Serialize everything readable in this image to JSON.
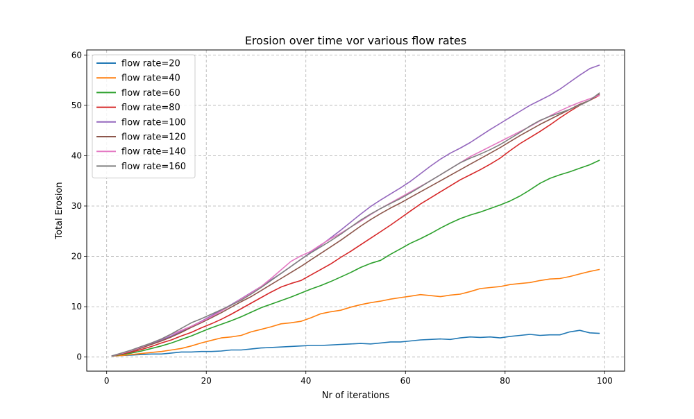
{
  "chart_data": {
    "type": "line",
    "title": "Erosion over time vor various flow rates",
    "xlabel": "Nr of iterations",
    "ylabel": "Total Erosion",
    "xlim": [
      -4,
      104
    ],
    "ylim": [
      -2.8,
      61
    ],
    "xticks": [
      0,
      20,
      40,
      60,
      80,
      100
    ],
    "yticks": [
      0,
      10,
      20,
      30,
      40,
      50,
      60
    ],
    "grid": true,
    "legend_position": "top-left",
    "x_range": [
      1,
      99
    ],
    "x_step": 2,
    "series": [
      {
        "name": "flow rate=20",
        "color": "#1f77b4",
        "values": [
          0.2,
          0.3,
          0.4,
          0.5,
          0.6,
          0.6,
          0.8,
          1.0,
          1.0,
          1.1,
          1.1,
          1.2,
          1.4,
          1.4,
          1.6,
          1.8,
          1.9,
          2.0,
          2.1,
          2.2,
          2.3,
          2.3,
          2.4,
          2.5,
          2.6,
          2.7,
          2.6,
          2.8,
          3.0,
          3.0,
          3.2,
          3.4,
          3.5,
          3.6,
          3.5,
          3.8,
          4.0,
          3.9,
          4.0,
          3.8,
          4.1,
          4.3,
          4.5,
          4.3,
          4.4,
          4.4,
          5.0,
          5.3,
          4.8,
          4.7
        ]
      },
      {
        "name": "flow rate=40",
        "color": "#ff7f0e",
        "values": [
          0.2,
          0.3,
          0.5,
          0.7,
          0.9,
          1.1,
          1.4,
          1.7,
          2.2,
          2.8,
          3.3,
          3.8,
          4.0,
          4.3,
          5.0,
          5.5,
          6.0,
          6.6,
          6.8,
          7.1,
          7.8,
          8.6,
          9.0,
          9.3,
          9.9,
          10.4,
          10.8,
          11.1,
          11.5,
          11.8,
          12.1,
          12.4,
          12.2,
          12.0,
          12.3,
          12.5,
          13.0,
          13.6,
          13.8,
          14.0,
          14.4,
          14.6,
          14.8,
          15.2,
          15.5,
          15.6,
          16.0,
          16.5,
          17.0,
          17.4
        ]
      },
      {
        "name": "flow rate=60",
        "color": "#2ca02c",
        "values": [
          0.2,
          0.5,
          0.8,
          1.2,
          1.7,
          2.2,
          2.8,
          3.5,
          4.2,
          5.0,
          5.8,
          6.5,
          7.2,
          8.0,
          8.9,
          9.8,
          10.5,
          11.2,
          11.9,
          12.7,
          13.5,
          14.2,
          15.0,
          15.9,
          16.8,
          17.8,
          18.6,
          19.2,
          20.4,
          21.5,
          22.6,
          23.5,
          24.5,
          25.6,
          26.6,
          27.5,
          28.2,
          28.8,
          29.5,
          30.2,
          31.0,
          32.0,
          33.2,
          34.5,
          35.5,
          36.2,
          36.8,
          37.5,
          38.2,
          39.1
        ]
      },
      {
        "name": "flow rate=80",
        "color": "#d62728",
        "values": [
          0.2,
          0.6,
          1.0,
          1.5,
          2.1,
          2.8,
          3.4,
          4.2,
          4.9,
          5.8,
          6.6,
          7.5,
          8.5,
          9.6,
          10.7,
          11.8,
          12.9,
          13.9,
          14.6,
          15.2,
          16.3,
          17.4,
          18.5,
          19.8,
          21.0,
          22.3,
          23.6,
          24.9,
          26.2,
          27.6,
          29.0,
          30.4,
          31.6,
          32.8,
          34.0,
          35.2,
          36.2,
          37.2,
          38.3,
          39.5,
          41.0,
          42.4,
          43.6,
          44.8,
          46.1,
          47.5,
          48.8,
          50.0,
          51.0,
          52.0
        ]
      },
      {
        "name": "flow rate=100",
        "color": "#9467bd",
        "values": [
          0.2,
          0.7,
          1.2,
          1.9,
          2.6,
          3.4,
          4.2,
          5.1,
          6.1,
          7.1,
          8.2,
          9.3,
          10.4,
          11.6,
          12.8,
          14.0,
          15.3,
          16.6,
          18.0,
          19.4,
          20.8,
          22.2,
          23.7,
          25.2,
          26.8,
          28.4,
          29.9,
          31.2,
          32.4,
          33.6,
          34.9,
          36.4,
          37.9,
          39.3,
          40.5,
          41.5,
          42.6,
          43.9,
          45.2,
          46.4,
          47.6,
          48.8,
          50.0,
          51.0,
          52.0,
          53.2,
          54.6,
          56.0,
          57.3,
          58.0
        ]
      },
      {
        "name": "flow rate=120",
        "color": "#8c564b",
        "values": [
          0.2,
          0.7,
          1.2,
          1.8,
          2.5,
          3.2,
          4.0,
          4.9,
          5.9,
          6.8,
          7.8,
          8.8,
          9.9,
          11.0,
          12.0,
          13.2,
          14.4,
          15.6,
          16.8,
          18.0,
          19.3,
          20.6,
          21.9,
          23.2,
          24.6,
          26.0,
          27.3,
          28.5,
          29.6,
          30.6,
          31.7,
          32.8,
          33.9,
          35.0,
          36.1,
          37.2,
          38.3,
          39.4,
          40.5,
          41.6,
          42.8,
          44.0,
          45.1,
          46.2,
          47.2,
          48.2,
          49.2,
          50.2,
          51.0,
          52.2
        ]
      },
      {
        "name": "flow rate=140",
        "color": "#e377c2",
        "values": [
          0.2,
          0.7,
          1.3,
          2.0,
          2.8,
          3.6,
          4.5,
          5.3,
          6.1,
          7.0,
          8.0,
          9.1,
          10.3,
          11.5,
          12.7,
          14.0,
          15.6,
          17.3,
          19.0,
          20.1,
          21.0,
          22.3,
          23.5,
          24.6,
          25.8,
          27.0,
          28.3,
          29.5,
          30.6,
          31.7,
          32.8,
          33.9,
          35.0,
          36.2,
          37.4,
          38.6,
          39.8,
          40.8,
          41.8,
          42.8,
          43.8,
          44.8,
          45.8,
          46.9,
          47.9,
          48.9,
          49.8,
          50.6,
          51.3,
          52.0
        ]
      },
      {
        "name": "flow rate=160",
        "color": "#7f7f7f",
        "values": [
          0.2,
          0.8,
          1.4,
          2.1,
          2.8,
          3.6,
          4.6,
          5.7,
          6.8,
          7.6,
          8.5,
          9.4,
          10.3,
          11.3,
          12.5,
          13.8,
          15.2,
          16.6,
          18.0,
          19.4,
          20.7,
          21.9,
          23.1,
          24.4,
          25.8,
          27.2,
          28.4,
          29.5,
          30.5,
          31.5,
          32.6,
          33.8,
          35.0,
          36.2,
          37.4,
          38.6,
          39.5,
          40.3,
          41.2,
          42.2,
          43.4,
          44.6,
          45.9,
          47.0,
          47.8,
          48.5,
          49.2,
          50.0,
          51.0,
          52.5
        ]
      }
    ]
  }
}
